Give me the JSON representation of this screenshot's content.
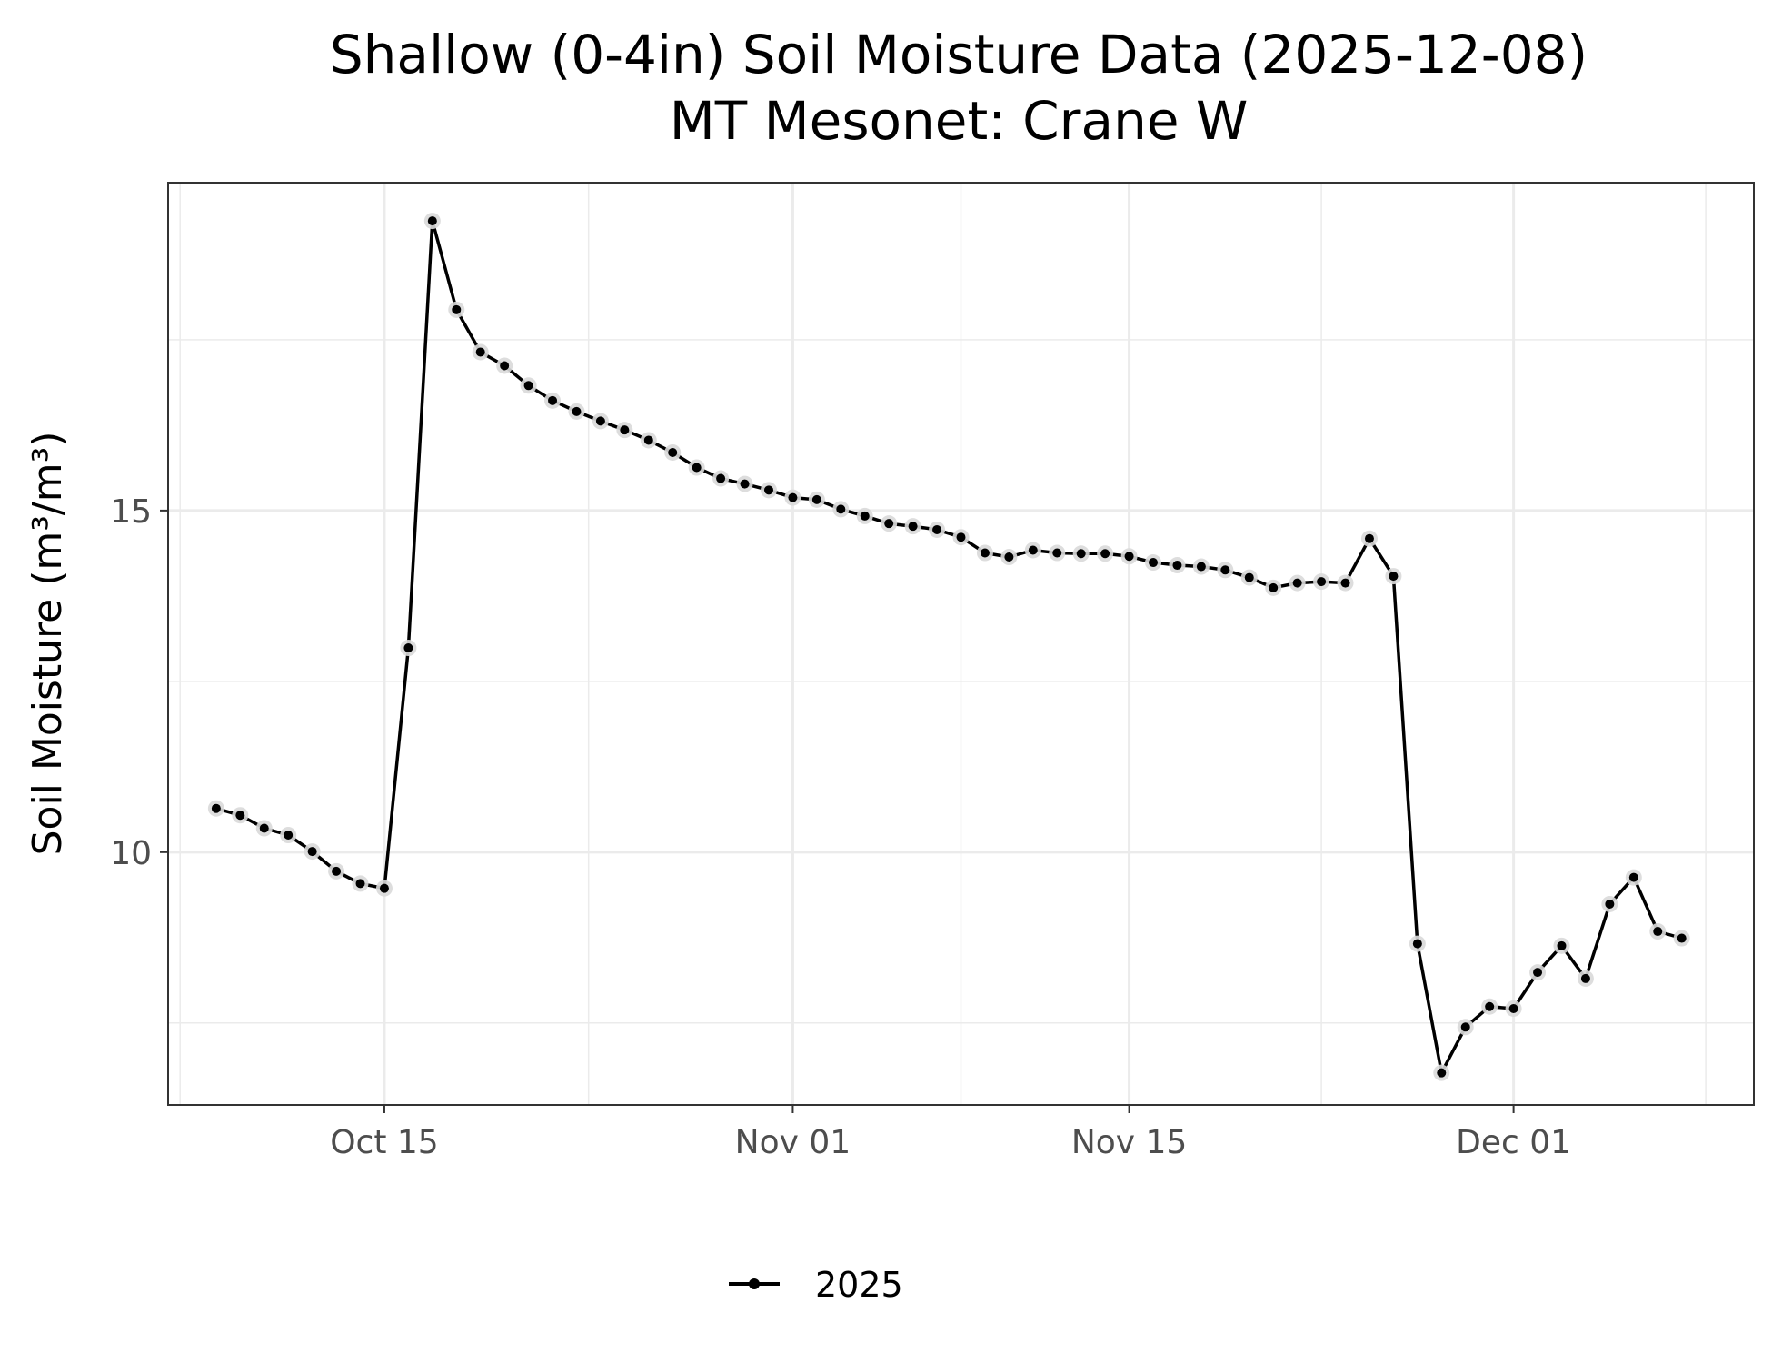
{
  "chart_data": {
    "type": "line",
    "title": "Shallow (0-4in) Soil Moisture Data (2025-12-08)",
    "subtitle": "MT Mesonet: Crane W",
    "xlabel": "",
    "ylabel": "Soil Moisture (m³/m³)",
    "x_ticks": [
      "Oct 15",
      "Nov 01",
      "Nov 15",
      "Dec 01"
    ],
    "x_tick_dates": [
      "2025-10-15",
      "2025-11-01",
      "2025-11-15",
      "2025-12-01"
    ],
    "y_ticks": [
      10,
      15
    ],
    "xlim": [
      "2025-10-06",
      "2025-12-11"
    ],
    "ylim": [
      6.3,
      19.8
    ],
    "grid": true,
    "legend_position": "bottom",
    "series": [
      {
        "name": "2025",
        "color": "#000000",
        "x": [
          "2025-10-08",
          "2025-10-09",
          "2025-10-10",
          "2025-10-11",
          "2025-10-12",
          "2025-10-13",
          "2025-10-14",
          "2025-10-15",
          "2025-10-16",
          "2025-10-17",
          "2025-10-18",
          "2025-10-19",
          "2025-10-20",
          "2025-10-21",
          "2025-10-22",
          "2025-10-23",
          "2025-10-24",
          "2025-10-25",
          "2025-10-26",
          "2025-10-27",
          "2025-10-28",
          "2025-10-29",
          "2025-10-30",
          "2025-10-31",
          "2025-11-01",
          "2025-11-02",
          "2025-11-03",
          "2025-11-04",
          "2025-11-05",
          "2025-11-06",
          "2025-11-07",
          "2025-11-08",
          "2025-11-09",
          "2025-11-10",
          "2025-11-11",
          "2025-11-12",
          "2025-11-13",
          "2025-11-14",
          "2025-11-15",
          "2025-11-16",
          "2025-11-17",
          "2025-11-18",
          "2025-11-19",
          "2025-11-20",
          "2025-11-21",
          "2025-11-22",
          "2025-11-23",
          "2025-11-24",
          "2025-11-25",
          "2025-11-26",
          "2025-11-27",
          "2025-11-28",
          "2025-11-29",
          "2025-11-30",
          "2025-12-01",
          "2025-12-02",
          "2025-12-03",
          "2025-12-04",
          "2025-12-05",
          "2025-12-06",
          "2025-12-07",
          "2025-12-08"
        ],
        "values": [
          10.64,
          10.54,
          10.35,
          10.25,
          10.01,
          9.72,
          9.54,
          9.47,
          12.99,
          19.24,
          17.94,
          17.32,
          17.12,
          16.83,
          16.61,
          16.45,
          16.31,
          16.18,
          16.03,
          15.85,
          15.63,
          15.47,
          15.39,
          15.3,
          15.19,
          15.16,
          15.02,
          14.92,
          14.81,
          14.77,
          14.72,
          14.61,
          14.38,
          14.32,
          14.42,
          14.38,
          14.37,
          14.37,
          14.33,
          14.24,
          14.2,
          14.18,
          14.13,
          14.02,
          13.87,
          13.94,
          13.96,
          13.94,
          14.59,
          14.04,
          8.66,
          6.77,
          7.44,
          7.74,
          7.71,
          8.24,
          8.63,
          8.15,
          9.24,
          9.63,
          8.84,
          8.74
        ]
      }
    ]
  }
}
